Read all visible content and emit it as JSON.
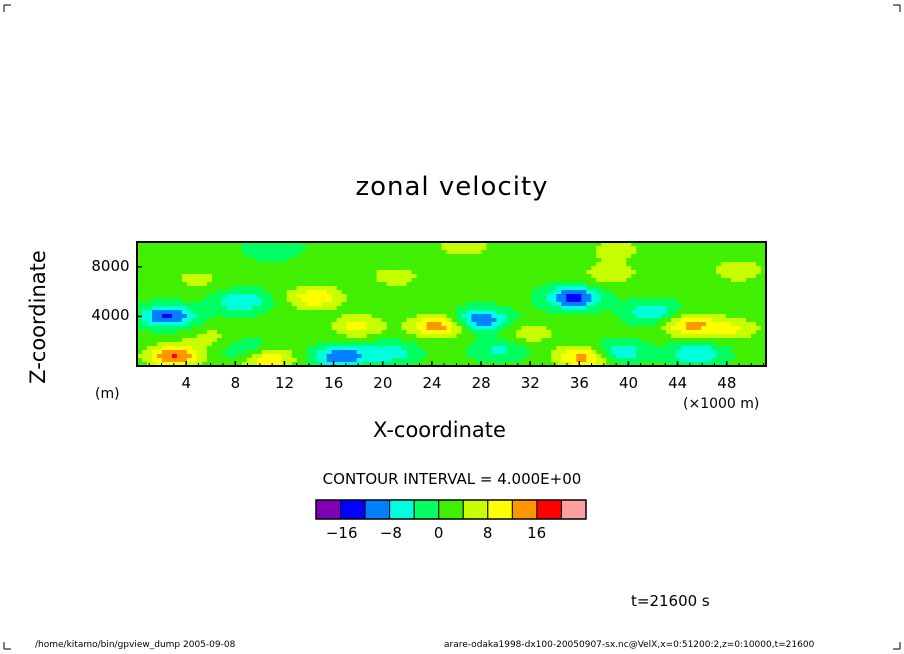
{
  "chart_data": {
    "type": "heatmap",
    "title": "zonal velocity",
    "xlabel": "X-coordinate",
    "ylabel": "Z-coordinate",
    "x_unit_label": "(×1000 m)",
    "y_unit_label": "(m)",
    "x_ticks": [
      "4",
      "8",
      "12",
      "16",
      "20",
      "24",
      "28",
      "32",
      "36",
      "40",
      "44",
      "48"
    ],
    "y_ticks": [
      "8000",
      "4000"
    ],
    "xlim": [
      0,
      51.2
    ],
    "ylim": [
      0,
      10000
    ],
    "contour_interval_text": "CONTOUR INTERVAL = 4.000E+00",
    "colorbar": {
      "levels": [
        -20,
        -16,
        -12,
        -8,
        -4,
        0,
        4,
        8,
        12,
        16,
        20
      ],
      "labels": [
        "−16",
        "−8",
        "0",
        "8",
        "16"
      ],
      "colors": [
        "#7d00b4",
        "#0000ff",
        "#0080ff",
        "#00ffdc",
        "#00ff60",
        "#40f000",
        "#c8ff00",
        "#ffff00",
        "#ff9600",
        "#ff0000",
        "#ffa0a0"
      ]
    },
    "features": [
      {
        "x": 2.5,
        "z": 4000,
        "u": -14
      },
      {
        "x": 3.0,
        "z": 800,
        "u": 15
      },
      {
        "x": 8.5,
        "z": 5200,
        "u": -9
      },
      {
        "x": 9.0,
        "z": 1200,
        "u": -7
      },
      {
        "x": 10.5,
        "z": 600,
        "u": 12
      },
      {
        "x": 14.5,
        "z": 5500,
        "u": 10
      },
      {
        "x": 16.5,
        "z": 700,
        "u": -13
      },
      {
        "x": 18.0,
        "z": 3200,
        "u": 8
      },
      {
        "x": 20.5,
        "z": 1100,
        "u": -8
      },
      {
        "x": 24.5,
        "z": 3200,
        "u": 13
      },
      {
        "x": 28.0,
        "z": 3700,
        "u": -13
      },
      {
        "x": 29.5,
        "z": 1300,
        "u": -6
      },
      {
        "x": 35.5,
        "z": 5500,
        "u": -15
      },
      {
        "x": 36.5,
        "z": 700,
        "u": 14
      },
      {
        "x": 39.0,
        "z": 1100,
        "u": -10
      },
      {
        "x": 42.0,
        "z": 4300,
        "u": -9
      },
      {
        "x": 45.0,
        "z": 3300,
        "u": 12
      },
      {
        "x": 45.5,
        "z": 1000,
        "u": -9
      },
      {
        "x": 11.0,
        "z": 9500,
        "u": -5
      },
      {
        "x": 26.5,
        "z": 9700,
        "u": 6
      },
      {
        "x": 39.0,
        "z": 9400,
        "u": 5
      },
      {
        "x": 38.5,
        "z": 7500,
        "u": 6
      },
      {
        "x": 49.0,
        "z": 7700,
        "u": 6
      },
      {
        "x": 5.0,
        "z": 7000,
        "u": 4
      },
      {
        "x": 21.0,
        "z": 7200,
        "u": 5
      },
      {
        "x": 32.0,
        "z": 2600,
        "u": 5
      },
      {
        "x": 48.5,
        "z": 3000,
        "u": 7
      },
      {
        "x": 6.0,
        "z": 2300,
        "u": 4
      }
    ]
  },
  "time_label": "t=21600 s",
  "footer_left": "/home/kitamo/bin/gpview_dump  2005-09-08",
  "footer_right": "arare-odaka1998-dx100-20050907-sx.nc@VelX,x=0:51200:2,z=0:10000,t=21600"
}
